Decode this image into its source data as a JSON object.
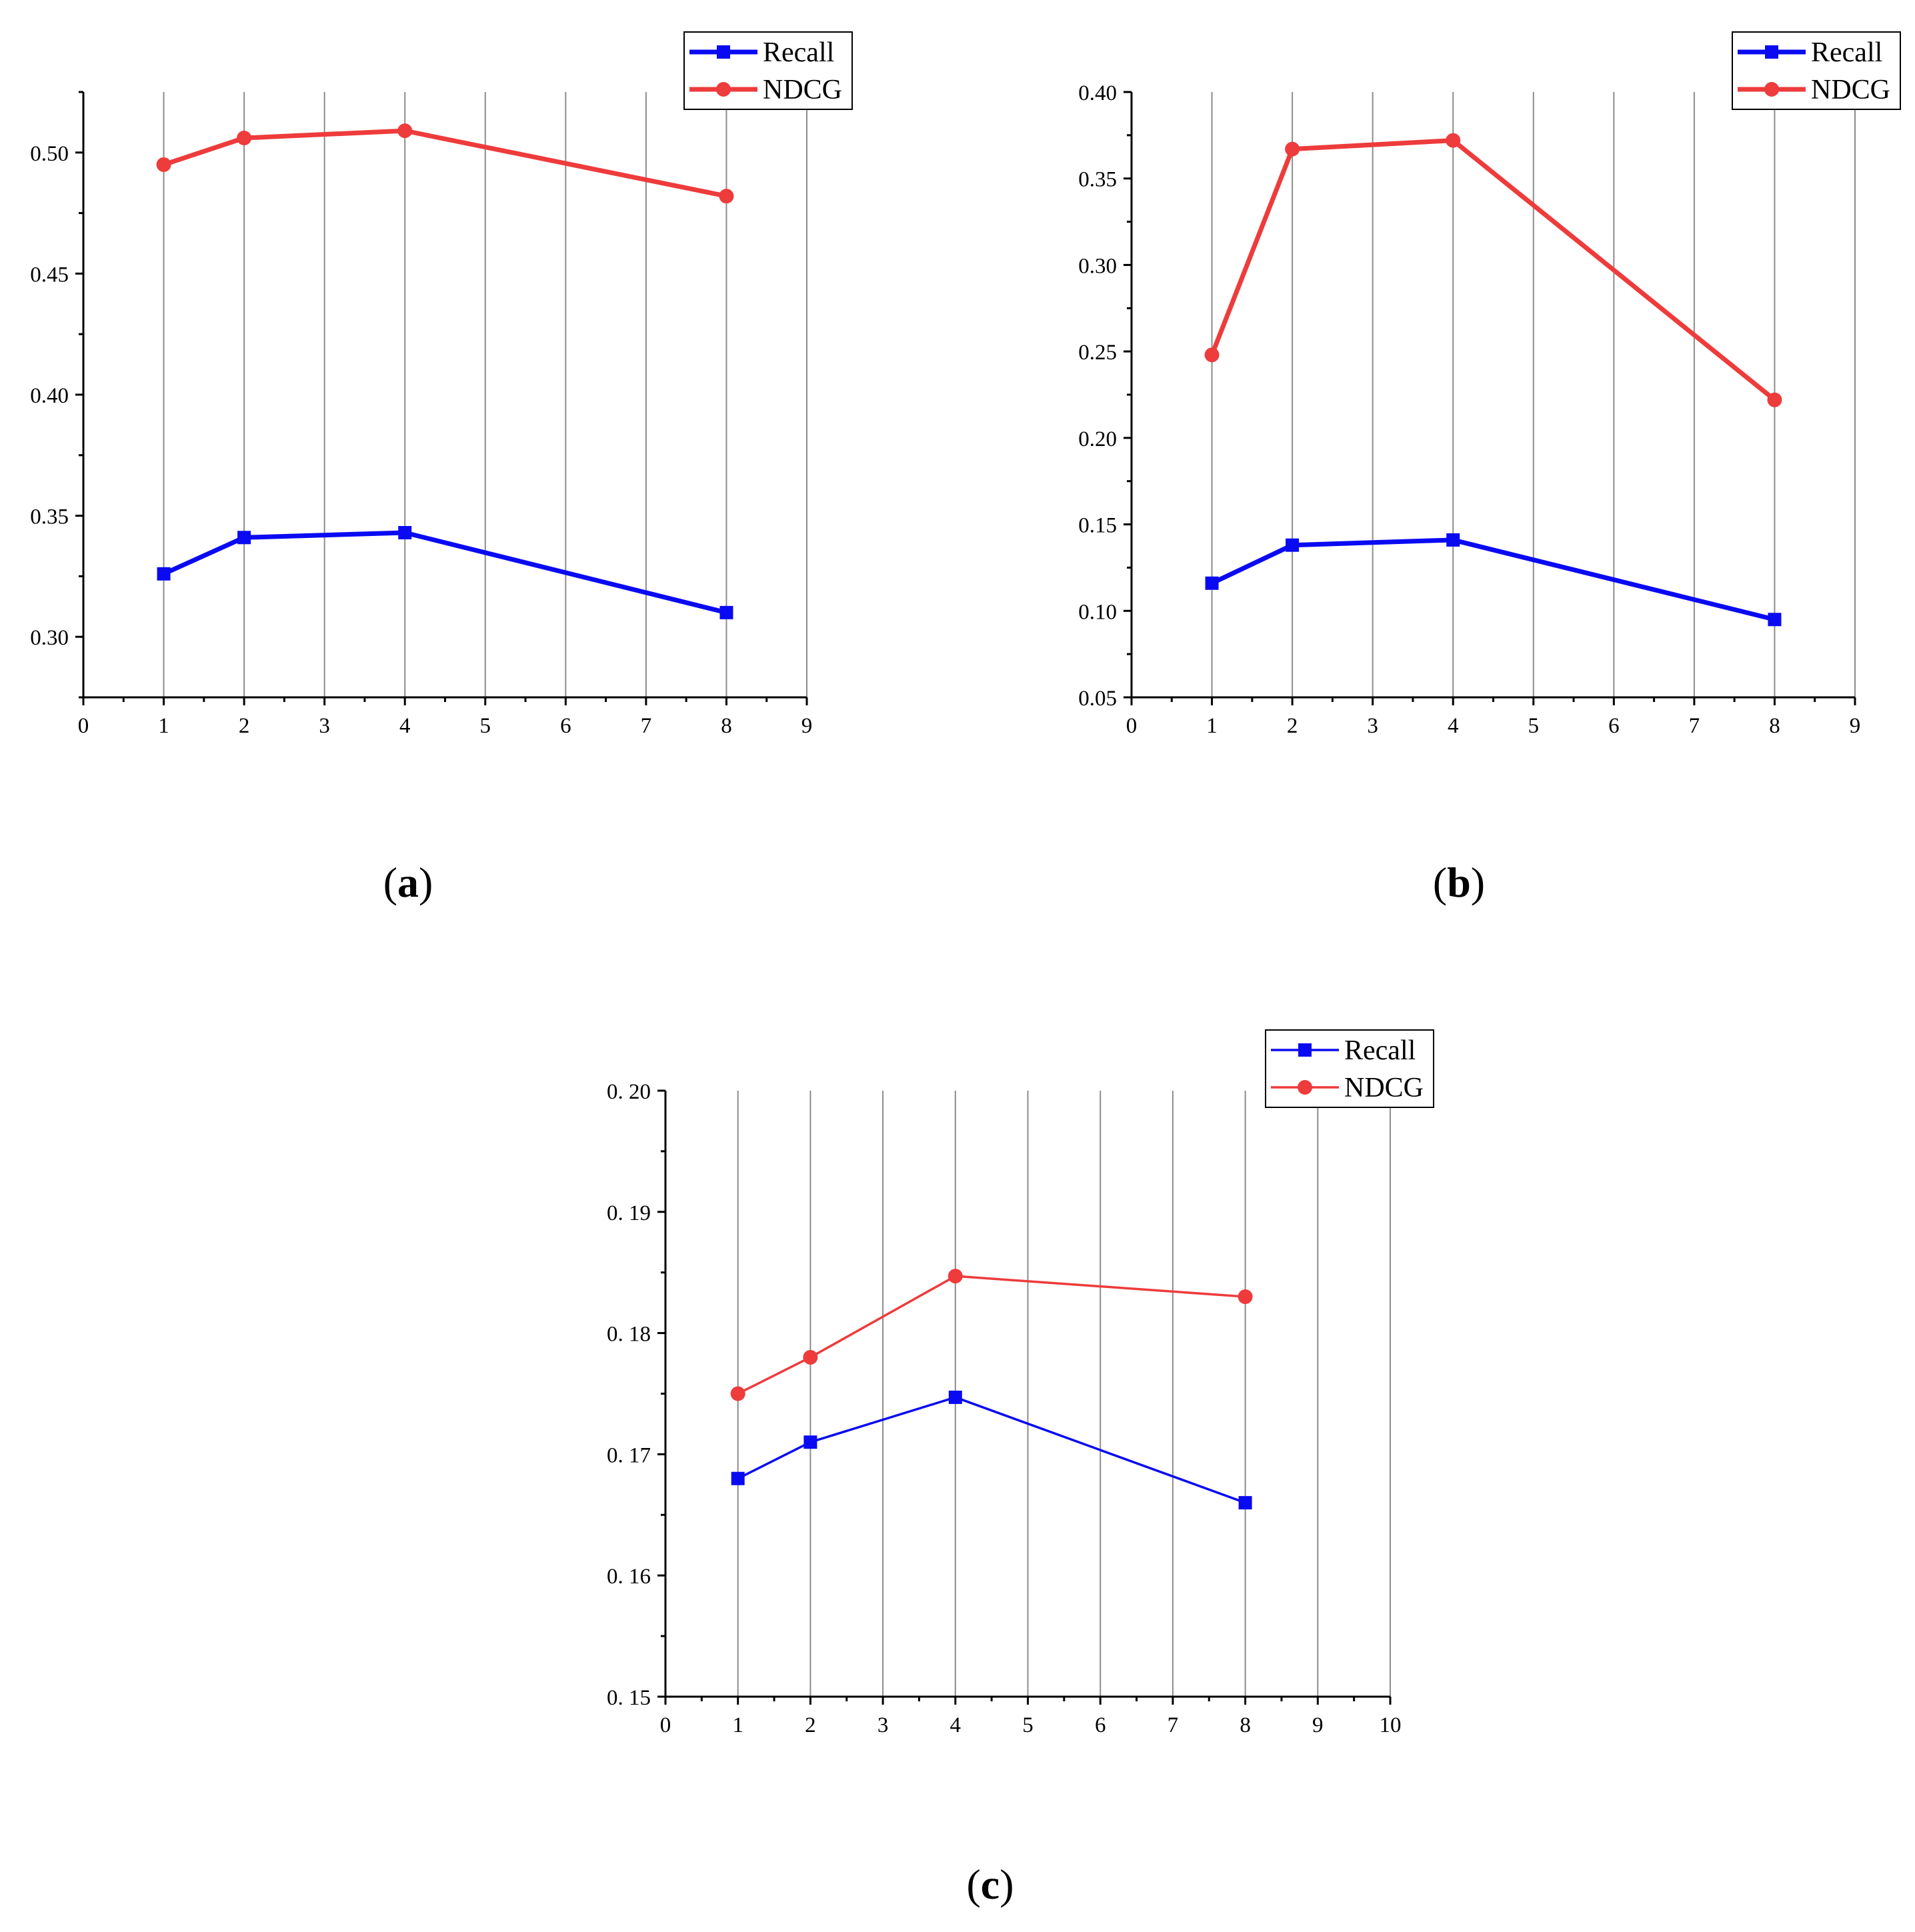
{
  "colors": {
    "recall": "#0a0af2",
    "ndcg": "#ee3b3b",
    "grid": "#8c8c8c",
    "axis": "#000000"
  },
  "chart_data": [
    {
      "panel": "a",
      "caption": "(a)",
      "type": "line",
      "x_ticks": [
        "0",
        "1",
        "2",
        "3",
        "4",
        "5",
        "6",
        "7",
        "8",
        "9"
      ],
      "x_range": [
        0,
        9
      ],
      "y_range": [
        0.275,
        0.525
      ],
      "y_ticks": [
        "0.30",
        "0.35",
        "0.40",
        "0.45",
        "0.50"
      ],
      "grid": "vertical",
      "line_style": "thick",
      "legend_position": "top-right",
      "series": [
        {
          "name": "Recall",
          "marker": "square",
          "color": "#0a0af2",
          "x": [
            1,
            2,
            4,
            8
          ],
          "values": [
            0.326,
            0.341,
            0.343,
            0.31
          ]
        },
        {
          "name": "NDCG",
          "marker": "circle",
          "color": "#ee3b3b",
          "x": [
            1,
            2,
            4,
            8
          ],
          "values": [
            0.495,
            0.506,
            0.509,
            0.482
          ]
        }
      ]
    },
    {
      "panel": "b",
      "caption": "(b)",
      "type": "line",
      "x_ticks": [
        "0",
        "1",
        "2",
        "3",
        "4",
        "5",
        "6",
        "7",
        "8",
        "9"
      ],
      "x_range": [
        0,
        9
      ],
      "y_range": [
        0.05,
        0.4
      ],
      "y_ticks": [
        "0.05",
        "0.10",
        "0.15",
        "0.20",
        "0.25",
        "0.30",
        "0.35",
        "0.40"
      ],
      "grid": "vertical",
      "line_style": "thick",
      "legend_position": "top-right",
      "series": [
        {
          "name": "Recall",
          "marker": "square",
          "color": "#0a0af2",
          "x": [
            1,
            2,
            4,
            8
          ],
          "values": [
            0.116,
            0.138,
            0.141,
            0.095
          ]
        },
        {
          "name": "NDCG",
          "marker": "circle",
          "color": "#ee3b3b",
          "x": [
            1,
            2,
            4,
            8
          ],
          "values": [
            0.248,
            0.367,
            0.372,
            0.222
          ]
        }
      ]
    },
    {
      "panel": "c",
      "caption": "(c)",
      "type": "line",
      "x_ticks": [
        "0",
        "1",
        "2",
        "3",
        "4",
        "5",
        "6",
        "7",
        "8",
        "9",
        "10"
      ],
      "x_range": [
        0,
        10
      ],
      "y_range": [
        0.15,
        0.2
      ],
      "y_ticks": [
        "0. 15",
        "0. 16",
        "0. 17",
        "0. 18",
        "0. 19",
        "0. 20"
      ],
      "grid": "vertical",
      "line_style": "thin",
      "legend_position": "top-right",
      "series": [
        {
          "name": "Recall",
          "marker": "square",
          "color": "#0a0af2",
          "x": [
            1,
            2,
            4,
            8
          ],
          "values": [
            0.168,
            0.171,
            0.1747,
            0.166
          ]
        },
        {
          "name": "NDCG",
          "marker": "circle",
          "color": "#ee3b3b",
          "x": [
            1,
            2,
            4,
            8
          ],
          "values": [
            0.175,
            0.178,
            0.1847,
            0.183
          ]
        }
      ]
    }
  ]
}
